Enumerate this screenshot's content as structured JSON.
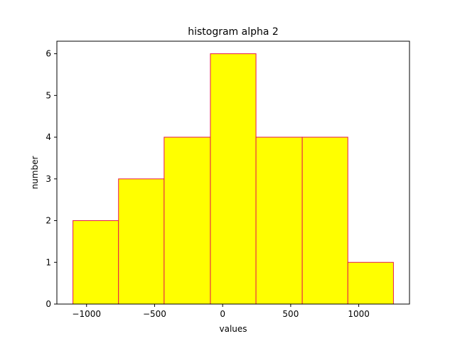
{
  "chart_data": {
    "type": "bar",
    "title": "histogram alpha 2",
    "xlabel": "values",
    "ylabel": "number",
    "bin_edges": [
      -1100,
      -765,
      -430,
      -90,
      245,
      585,
      920,
      1255
    ],
    "values": [
      2,
      3,
      4,
      6,
      4,
      4,
      1
    ],
    "xlim": [
      -1218,
      1373
    ],
    "ylim": [
      0,
      6.3
    ],
    "xticks": [
      -1000,
      -500,
      0,
      500,
      1000
    ],
    "xtick_labels": [
      "−1000",
      "−500",
      "0",
      "500",
      "1000"
    ],
    "yticks": [
      0,
      1,
      2,
      3,
      4,
      5,
      6
    ],
    "ytick_labels": [
      "0",
      "1",
      "2",
      "3",
      "4",
      "5",
      "6"
    ],
    "grid": false,
    "colors": {
      "fill": "#ffff00",
      "edge": "#e6194b"
    }
  }
}
